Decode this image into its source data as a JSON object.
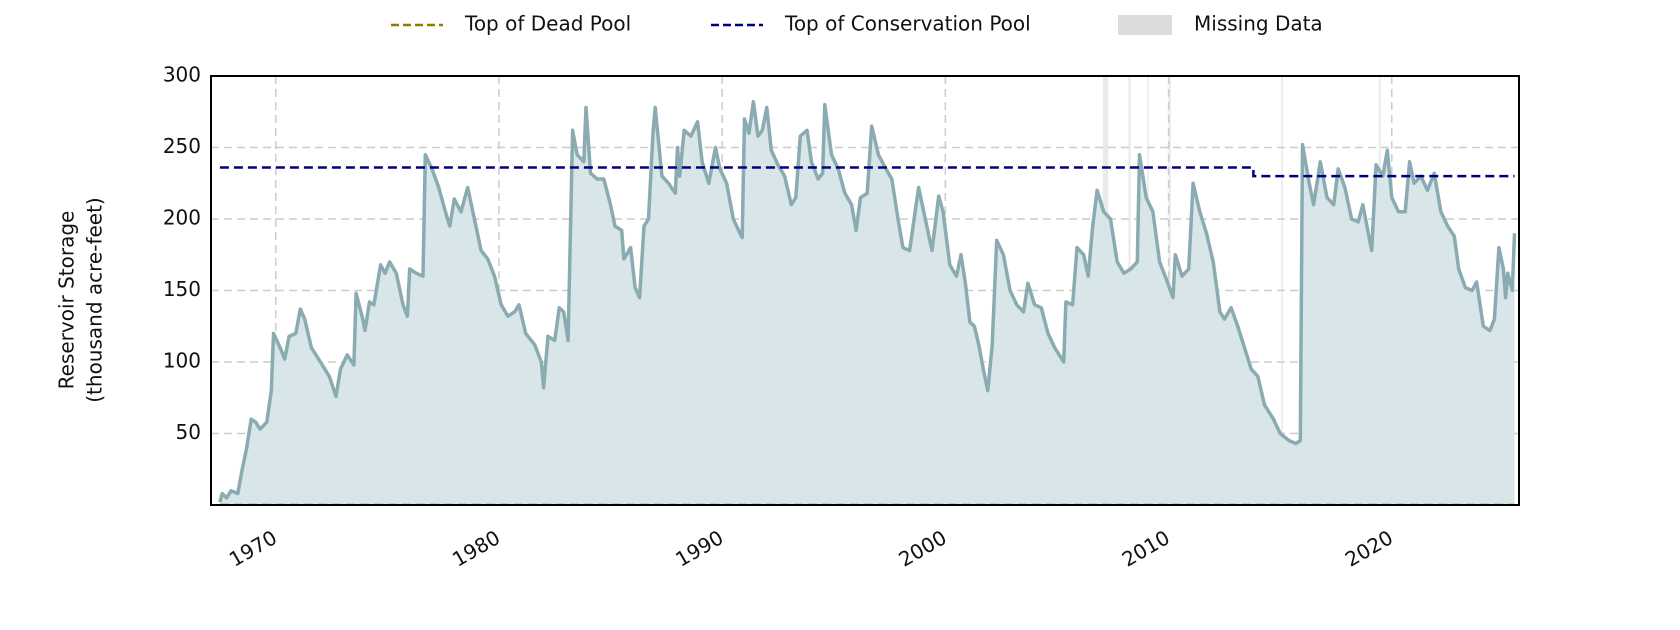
{
  "chart_data": {
    "type": "line",
    "ylabel": [
      "Reservoir Storage",
      "(thousand acre-feet)"
    ],
    "xlim": [
      1967.1,
      2025.7
    ],
    "xticks": [
      1970,
      1980,
      1990,
      2000,
      2010,
      2020
    ],
    "ylim": [
      0,
      300
    ],
    "yticks": [
      50,
      100,
      150,
      200,
      250,
      300
    ],
    "grid": true,
    "legend": "top",
    "color": "#8aabb1",
    "fill_color": "#d6e5e8",
    "x": [
      1967.5,
      1967.6,
      1967.8,
      1968.0,
      1968.3,
      1968.5,
      1968.7,
      1968.9,
      1969.1,
      1969.3,
      1969.6,
      1969.8,
      1969.9,
      1970.2,
      1970.4,
      1970.6,
      1970.9,
      1971.1,
      1971.3,
      1971.6,
      1972.0,
      1972.4,
      1972.7,
      1972.9,
      1973.2,
      1973.5,
      1973.6,
      1973.9,
      1974.0,
      1974.2,
      1974.4,
      1974.7,
      1974.9,
      1975.1,
      1975.4,
      1975.7,
      1975.9,
      1976.0,
      1976.3,
      1976.6,
      1976.7,
      1977.0,
      1977.3,
      1977.6,
      1977.8,
      1978.0,
      1978.3,
      1978.6,
      1978.9,
      1979.2,
      1979.5,
      1979.8,
      1980.1,
      1980.4,
      1980.7,
      1980.9,
      1981.2,
      1981.6,
      1981.9,
      1982.0,
      1982.2,
      1982.5,
      1982.7,
      1982.9,
      1983.1,
      1983.3,
      1983.5,
      1983.8,
      1983.9,
      1984.1,
      1984.4,
      1984.7,
      1985.0,
      1985.2,
      1985.5,
      1985.6,
      1985.9,
      1986.1,
      1986.3,
      1986.5,
      1986.7,
      1986.9,
      1987.0,
      1987.3,
      1987.6,
      1987.9,
      1988.0,
      1988.1,
      1988.3,
      1988.6,
      1988.9,
      1989.1,
      1989.4,
      1989.7,
      1989.9,
      1990.2,
      1990.5,
      1990.8,
      1990.9,
      1991.0,
      1991.2,
      1991.4,
      1991.6,
      1991.8,
      1992.0,
      1992.2,
      1992.5,
      1992.8,
      1993.1,
      1993.3,
      1993.5,
      1993.8,
      1994.0,
      1994.3,
      1994.5,
      1994.6,
      1994.9,
      1995.2,
      1995.5,
      1995.8,
      1996.0,
      1996.2,
      1996.5,
      1996.7,
      1997.0,
      1997.3,
      1997.6,
      1997.9,
      1998.1,
      1998.4,
      1998.6,
      1998.8,
      1999.1,
      1999.4,
      1999.7,
      1999.9,
      2000.2,
      2000.5,
      2000.7,
      2000.9,
      2001.1,
      2001.3,
      2001.5,
      2001.7,
      2001.9,
      2002.1,
      2002.3,
      2002.6,
      2002.9,
      2003.2,
      2003.5,
      2003.7,
      2004.0,
      2004.3,
      2004.6,
      2004.9,
      2005.1,
      2005.3,
      2005.4,
      2005.7,
      2005.9,
      2006.2,
      2006.4,
      2006.6,
      2006.8,
      2007.1,
      2007.4,
      2007.7,
      2008.0,
      2008.3,
      2008.6,
      2008.7,
      2009.0,
      2009.3,
      2009.6,
      2009.9,
      2010.2,
      2010.3,
      2010.6,
      2010.9,
      2011.1,
      2011.4,
      2011.7,
      2012.0,
      2012.3,
      2012.5,
      2012.8,
      2013.1,
      2013.4,
      2013.7,
      2014.0,
      2014.3,
      2014.7,
      2015.0,
      2015.4,
      2015.7,
      2015.9,
      2016.0,
      2016.3,
      2016.5,
      2016.8,
      2017.1,
      2017.4,
      2017.6,
      2017.9,
      2018.2,
      2018.5,
      2018.7,
      2019.1,
      2019.3,
      2019.6,
      2019.8,
      2020.0,
      2020.3,
      2020.6,
      2020.8,
      2021.0,
      2021.3,
      2021.6,
      2021.9,
      2022.2,
      2022.5,
      2022.8,
      2023.0,
      2023.3,
      2023.6,
      2023.8,
      2024.1,
      2024.4,
      2024.6,
      2024.8,
      2025.0,
      2025.1,
      2025.2,
      2025.4,
      2025.5
    ],
    "values": [
      2,
      8,
      5,
      10,
      8,
      25,
      40,
      60,
      58,
      53,
      58,
      80,
      120,
      110,
      102,
      118,
      120,
      137,
      130,
      110,
      100,
      90,
      76,
      95,
      105,
      98,
      148,
      130,
      122,
      142,
      140,
      168,
      162,
      170,
      162,
      140,
      132,
      165,
      162,
      160,
      245,
      235,
      222,
      205,
      195,
      214,
      205,
      222,
      200,
      178,
      172,
      160,
      140,
      132,
      135,
      140,
      120,
      112,
      100,
      82,
      118,
      115,
      138,
      135,
      115,
      262,
      245,
      240,
      278,
      232,
      228,
      228,
      210,
      195,
      192,
      172,
      180,
      152,
      145,
      195,
      200,
      260,
      278,
      230,
      225,
      218,
      250,
      230,
      262,
      258,
      268,
      240,
      225,
      250,
      235,
      225,
      200,
      190,
      187,
      270,
      260,
      282,
      258,
      262,
      278,
      248,
      238,
      230,
      210,
      215,
      258,
      262,
      240,
      228,
      232,
      280,
      245,
      235,
      218,
      210,
      192,
      215,
      218,
      265,
      245,
      236,
      228,
      198,
      180,
      178,
      200,
      222,
      200,
      178,
      216,
      205,
      168,
      160,
      175,
      155,
      128,
      125,
      112,
      95,
      80,
      112,
      185,
      175,
      150,
      140,
      135,
      155,
      140,
      138,
      120,
      110,
      105,
      100,
      142,
      140,
      180,
      175,
      160,
      195,
      220,
      205,
      200,
      170,
      162,
      165,
      170,
      245,
      215,
      205,
      170,
      158,
      145,
      175,
      160,
      165,
      225,
      205,
      190,
      170,
      135,
      130,
      138,
      125,
      110,
      95,
      90,
      70,
      60,
      50,
      45,
      43,
      45,
      252,
      225,
      210,
      240,
      215,
      210,
      235,
      222,
      200,
      198,
      210,
      178,
      238,
      230,
      248,
      215,
      205,
      205,
      240,
      225,
      230,
      220,
      232,
      205,
      195,
      188,
      165,
      152,
      150,
      156,
      125,
      122,
      130,
      180,
      165,
      145,
      162,
      150,
      190
    ],
    "series": [
      {
        "name": "Top of Dead Pool",
        "color": "#8b8000",
        "x": [
          1967.5,
          2025.5
        ],
        "values": [
          0,
          0
        ]
      },
      {
        "name": "Top of Conservation Pool",
        "color": "#00007f",
        "x": [
          1967.5,
          2013.8,
          2013.8,
          2025.5
        ],
        "values": [
          236,
          236,
          230,
          230
        ]
      }
    ],
    "missing_data": {
      "name": "Missing Data",
      "color": "#dcdcdc",
      "spans": [
        [
          2007.05,
          2007.3
        ],
        [
          2008.2,
          2008.3
        ],
        [
          2009.05,
          2009.12
        ],
        [
          2010.0,
          2010.1
        ],
        [
          2015.05,
          2015.12
        ],
        [
          2019.42,
          2019.5
        ]
      ]
    }
  }
}
